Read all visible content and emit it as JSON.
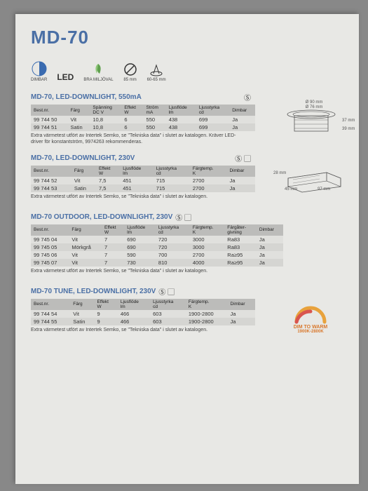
{
  "title": "MD-70",
  "icons": {
    "dimmable": "DIMBAR",
    "led": "LED",
    "eco": "BRA MILJÖVAL",
    "diam": "85 mm",
    "cutout": "60-65 mm"
  },
  "sec1": {
    "title": "MD-70, LED-DOWNLIGHT, 550mA",
    "cols": [
      "Best.nr.",
      "Färg",
      "Spänning\nDC V",
      "Effekt\nW",
      "Ström\nmA",
      "Ljusflöde\nlm",
      "Ljusstyrka\ncd",
      "Dimbar"
    ],
    "rows": [
      [
        "99 744 50",
        "Vit",
        "10,8",
        "6",
        "550",
        "438",
        "699",
        "Ja"
      ],
      [
        "99 744 51",
        "Satin",
        "10,8",
        "6",
        "550",
        "438",
        "699",
        "Ja"
      ]
    ],
    "note": "Extra värmetest utfört av Intertek Semko, se \"Tekniska data\" i slutet av katalogen. Kräver LED-driver för konstantström, 9974263 rekommenderas."
  },
  "sec2": {
    "title": "MD-70, LED-DOWNLIGHT, 230V",
    "cols": [
      "Best.nr.",
      "Färg",
      "Effekt\nW",
      "Ljusflöde\nlm",
      "Ljusstyrka\ncd",
      "Färgtemp.\nK",
      "Dimbar"
    ],
    "rows": [
      [
        "99 744 52",
        "Vit",
        "7,5",
        "451",
        "715",
        "2700",
        "Ja"
      ],
      [
        "99 744 53",
        "Satin",
        "7,5",
        "451",
        "715",
        "2700",
        "Ja"
      ]
    ],
    "note": "Extra värmetest utfört av Intertek Semko, se \"Tekniska data\" i slutet av katalogen."
  },
  "sec3": {
    "title": "MD-70 OUTDOOR, LED-DOWNLIGHT, 230V",
    "cols": [
      "Best.nr.",
      "Färg",
      "Effekt\nW",
      "Ljusflöde\nlm",
      "Ljusstyrka\ncd",
      "Färgtemp.\nK",
      "Färgåter-\ngivning",
      "Dimbar"
    ],
    "rows": [
      [
        "99 745 04",
        "Vit",
        "7",
        "690",
        "720",
        "3000",
        "Ra83",
        "Ja"
      ],
      [
        "99 745 05",
        "Mörkgrå",
        "7",
        "690",
        "720",
        "3000",
        "Ra83",
        "Ja"
      ],
      [
        "99 745 06",
        "Vit",
        "7",
        "590",
        "700",
        "2700",
        "Ra≥95",
        "Ja"
      ],
      [
        "99 745 07",
        "Vit",
        "7",
        "730",
        "810",
        "4000",
        "Ra≥95",
        "Ja"
      ]
    ],
    "note": "Extra värmetest utfört av Intertek Semko, se \"Tekniska data\" i slutet av katalogen."
  },
  "sec4": {
    "title": "MD-70 TUNE, LED-DOWNLIGHT, 230V",
    "cols": [
      "Best.nr.",
      "Färg",
      "Effekt\nW",
      "Ljusflöde\nlm",
      "Ljusstyrka\ncd",
      "Färgtemp.\nK",
      "Dimbar"
    ],
    "rows": [
      [
        "99 744 54",
        "Vit",
        "9",
        "466",
        "603",
        "1900-2800",
        "Ja"
      ],
      [
        "99 744 55",
        "Satin",
        "9",
        "466",
        "603",
        "1900-2800",
        "Ja"
      ]
    ],
    "note": "Extra värmetest utfört av Intertek Semko, se \"Tekniska data\" i slutet av katalogen."
  },
  "dimwarm": {
    "l1": "DIM TO WARM",
    "l2": "1900K-2800K"
  },
  "diag": {
    "d1": "Ø 90 mm",
    "d2": "Ø 76 mm",
    "h1": "37 mm",
    "h2": "39 mm",
    "w": "97 mm",
    "dh": "28 mm",
    "dd": "45 mm"
  }
}
